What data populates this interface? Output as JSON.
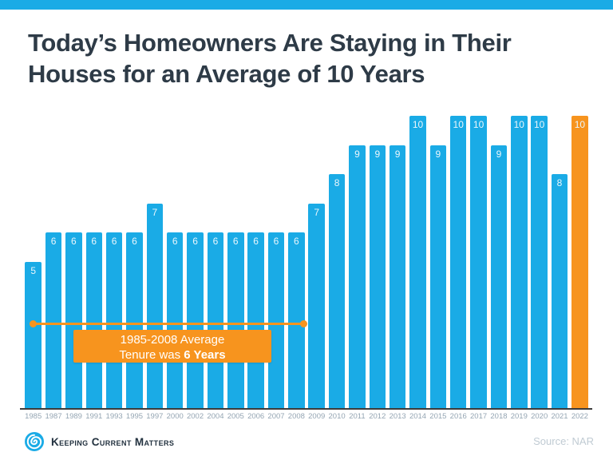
{
  "page": {
    "title": "Today’s Homeowners Are Staying in Their Houses for an Average of 10 Years"
  },
  "colors": {
    "accent_blue": "#1AABE6",
    "accent_orange": "#F7941E",
    "title_text": "#2E3B47",
    "axis_label": "#94A5B3"
  },
  "chart_data": {
    "type": "bar",
    "title": "Today’s Homeowners Are Staying in Their Houses for an Average of 10 Years",
    "xlabel": "",
    "ylabel": "",
    "ylim": [
      0,
      10
    ],
    "grid": false,
    "value_labels": "inside-top",
    "categories": [
      "1985",
      "1987",
      "1989",
      "1991",
      "1993",
      "1995",
      "1997",
      "2000",
      "2002",
      "2004",
      "2005",
      "2006",
      "2007",
      "2008",
      "2009",
      "2010",
      "2011",
      "2012",
      "2013",
      "2014",
      "2015",
      "2016",
      "2017",
      "2018",
      "2019",
      "2020",
      "2021",
      "2022"
    ],
    "values": [
      5,
      6,
      6,
      6,
      6,
      6,
      7,
      6,
      6,
      6,
      6,
      6,
      6,
      6,
      7,
      8,
      9,
      9,
      9,
      10,
      9,
      10,
      10,
      9,
      10,
      10,
      8,
      10
    ],
    "bar_color": "#1AABE6",
    "highlight_year": "2022",
    "highlight_color": "#F7941E",
    "annotation": {
      "span_years": [
        "1985",
        "2008"
      ],
      "line1": "1985-2008 Average",
      "line2_prefix": "Tenure was ",
      "line2_bold": "6 Years"
    }
  },
  "footer": {
    "brand": "Keeping Current Matters",
    "source": "Source: NAR"
  }
}
